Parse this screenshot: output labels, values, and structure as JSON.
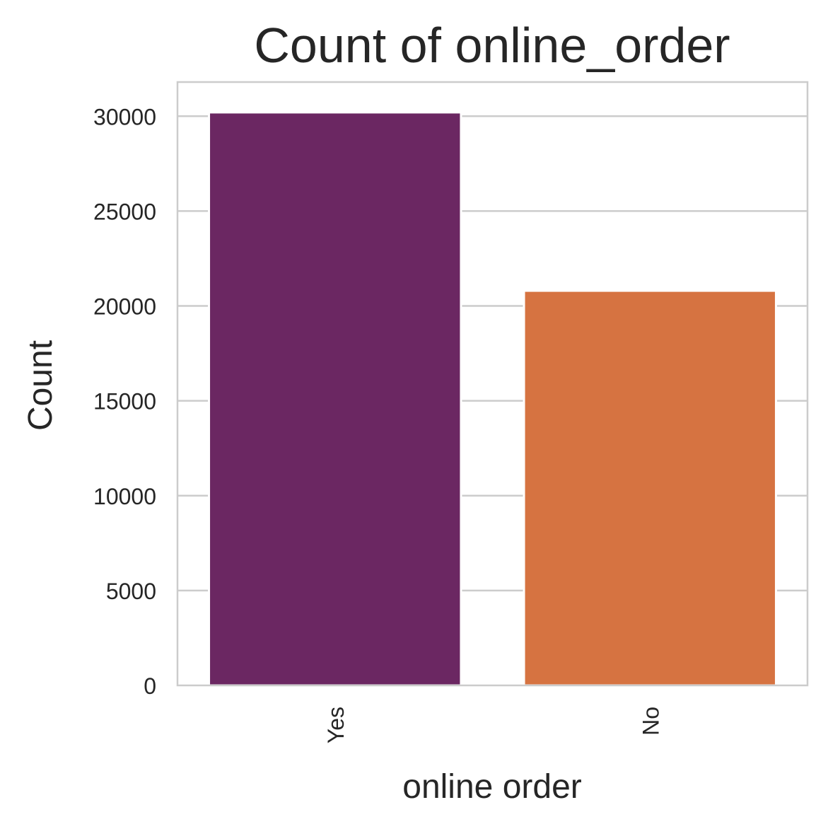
{
  "chart_data": {
    "type": "bar",
    "title": "Count of online_order",
    "xlabel": "online order",
    "ylabel": "Count",
    "categories": [
      "Yes",
      "No"
    ],
    "values": [
      30200,
      20800
    ],
    "colors": [
      "#6b2762",
      "#d67341"
    ],
    "ylim": [
      0,
      31800
    ],
    "yticks": [
      0,
      5000,
      10000,
      15000,
      20000,
      25000,
      30000
    ],
    "ytick_labels": [
      "0",
      "5000",
      "10000",
      "15000",
      "20000",
      "25000",
      "30000"
    ],
    "grid": true,
    "grid_axis": "y",
    "legend": "none"
  }
}
